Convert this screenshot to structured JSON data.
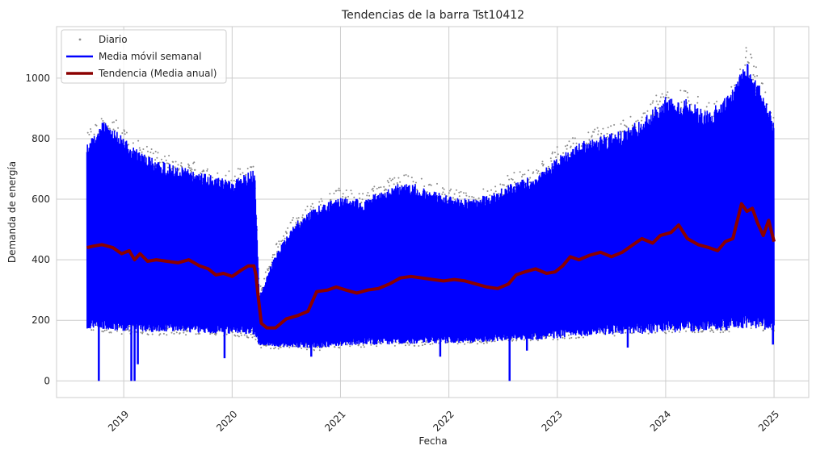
{
  "chart_data": {
    "type": "line",
    "title": "Tendencias de la barra Tst10412",
    "xlabel": "Fecha",
    "ylabel": "Demanda de energía",
    "xlim": [
      2018.38,
      2025.32
    ],
    "ylim": [
      -55,
      1170
    ],
    "x_ticks": [
      {
        "value": 2019,
        "label": "2019"
      },
      {
        "value": 2020,
        "label": "2020"
      },
      {
        "value": 2021,
        "label": "2021"
      },
      {
        "value": 2022,
        "label": "2022"
      },
      {
        "value": 2023,
        "label": "2023"
      },
      {
        "value": 2024,
        "label": "2024"
      },
      {
        "value": 2025,
        "label": "2025"
      }
    ],
    "y_ticks": [
      0,
      200,
      400,
      600,
      800,
      1000
    ],
    "grid": true,
    "legend_position": "top-left",
    "colors": {
      "daily": "#8c8c8c",
      "weekly": "#0000ff",
      "trend": "#8b0000",
      "grid": "#cccccc",
      "spine": "#cccccc"
    },
    "series": [
      {
        "name": "Diario",
        "style": "scatter",
        "envelope_x": [
          2018.66,
          2018.8,
          2018.95,
          2019.1,
          2019.3,
          2019.5,
          2019.7,
          2019.9,
          2020.0,
          2020.1,
          2020.21,
          2020.25,
          2020.4,
          2020.6,
          2020.8,
          2021.0,
          2021.2,
          2021.4,
          2021.6,
          2021.8,
          2022.0,
          2022.2,
          2022.4,
          2022.6,
          2022.8,
          2023.0,
          2023.2,
          2023.4,
          2023.6,
          2023.8,
          2024.0,
          2024.2,
          2024.4,
          2024.6,
          2024.75,
          2024.9,
          2025.0
        ],
        "envelope_high": [
          820,
          880,
          860,
          800,
          760,
          740,
          720,
          700,
          690,
          710,
          720,
          300,
          450,
          560,
          600,
          640,
          620,
          660,
          690,
          660,
          640,
          620,
          650,
          690,
          700,
          780,
          820,
          840,
          860,
          900,
          980,
          960,
          920,
          980,
          1110,
          980,
          900
        ],
        "envelope_low": [
          160,
          160,
          155,
          155,
          150,
          150,
          150,
          145,
          145,
          145,
          140,
          110,
          105,
          105,
          100,
          110,
          110,
          115,
          115,
          115,
          120,
          120,
          125,
          130,
          130,
          135,
          140,
          145,
          150,
          150,
          155,
          155,
          160,
          160,
          170,
          165,
          160
        ]
      },
      {
        "name": "Media móvil semanal",
        "style": "line",
        "envelope_x": [
          2018.66,
          2018.8,
          2018.95,
          2019.1,
          2019.3,
          2019.5,
          2019.7,
          2019.9,
          2020.0,
          2020.1,
          2020.21,
          2020.25,
          2020.4,
          2020.6,
          2020.8,
          2021.0,
          2021.2,
          2021.4,
          2021.6,
          2021.8,
          2022.0,
          2022.2,
          2022.4,
          2022.6,
          2022.8,
          2023.0,
          2023.2,
          2023.4,
          2023.6,
          2023.8,
          2024.0,
          2024.2,
          2024.4,
          2024.6,
          2024.75,
          2024.9,
          2025.0
        ],
        "envelope_high": [
          780,
          860,
          820,
          770,
          730,
          710,
          690,
          670,
          660,
          680,
          700,
          280,
          420,
          530,
          580,
          610,
          600,
          630,
          660,
          640,
          610,
          600,
          620,
          660,
          680,
          740,
          790,
          810,
          830,
          870,
          940,
          930,
          890,
          960,
          1060,
          950,
          860
        ],
        "envelope_low": [
          170,
          170,
          165,
          165,
          160,
          160,
          158,
          155,
          155,
          155,
          150,
          118,
          112,
          110,
          108,
          115,
          118,
          120,
          120,
          120,
          125,
          125,
          130,
          135,
          135,
          140,
          145,
          150,
          155,
          155,
          160,
          160,
          165,
          168,
          175,
          170,
          165
        ],
        "dips": [
          {
            "x": 2018.77,
            "y": 0
          },
          {
            "x": 2019.07,
            "y": 0
          },
          {
            "x": 2019.1,
            "y": 0
          },
          {
            "x": 2019.13,
            "y": 55
          },
          {
            "x": 2019.93,
            "y": 75
          },
          {
            "x": 2020.73,
            "y": 80
          },
          {
            "x": 2021.92,
            "y": 80
          },
          {
            "x": 2022.56,
            "y": 0
          },
          {
            "x": 2022.72,
            "y": 100
          },
          {
            "x": 2023.65,
            "y": 110
          },
          {
            "x": 2024.99,
            "y": 120
          }
        ]
      },
      {
        "name": "Tendencia (Media anual)",
        "style": "line",
        "x": [
          2018.66,
          2018.72,
          2018.8,
          2018.9,
          2018.98,
          2019.05,
          2019.1,
          2019.15,
          2019.22,
          2019.3,
          2019.4,
          2019.5,
          2019.6,
          2019.7,
          2019.78,
          2019.85,
          2019.92,
          2020.0,
          2020.08,
          2020.15,
          2020.2,
          2020.22,
          2020.24,
          2020.27,
          2020.32,
          2020.4,
          2020.5,
          2020.6,
          2020.7,
          2020.78,
          2020.88,
          2020.96,
          2021.05,
          2021.15,
          2021.25,
          2021.35,
          2021.45,
          2021.55,
          2021.65,
          2021.75,
          2021.85,
          2021.95,
          2022.05,
          2022.15,
          2022.25,
          2022.35,
          2022.45,
          2022.55,
          2022.62,
          2022.7,
          2022.8,
          2022.9,
          2022.98,
          2023.05,
          2023.12,
          2023.2,
          2023.3,
          2023.4,
          2023.5,
          2023.6,
          2023.7,
          2023.78,
          2023.88,
          2023.95,
          2024.05,
          2024.12,
          2024.2,
          2024.3,
          2024.4,
          2024.48,
          2024.55,
          2024.62,
          2024.7,
          2024.75,
          2024.8,
          2024.85,
          2024.9,
          2024.95,
          2025.0
        ],
        "y": [
          440,
          445,
          450,
          440,
          420,
          430,
          400,
          420,
          395,
          400,
          395,
          390,
          400,
          380,
          370,
          350,
          355,
          345,
          365,
          380,
          380,
          350,
          280,
          190,
          175,
          175,
          205,
          215,
          230,
          295,
          300,
          310,
          300,
          290,
          300,
          305,
          320,
          340,
          345,
          340,
          335,
          330,
          335,
          330,
          320,
          310,
          305,
          320,
          350,
          360,
          370,
          355,
          360,
          380,
          410,
          400,
          415,
          425,
          410,
          425,
          450,
          470,
          455,
          480,
          490,
          515,
          470,
          450,
          440,
          430,
          460,
          470,
          585,
          560,
          570,
          520,
          480,
          530,
          460
        ]
      }
    ]
  }
}
